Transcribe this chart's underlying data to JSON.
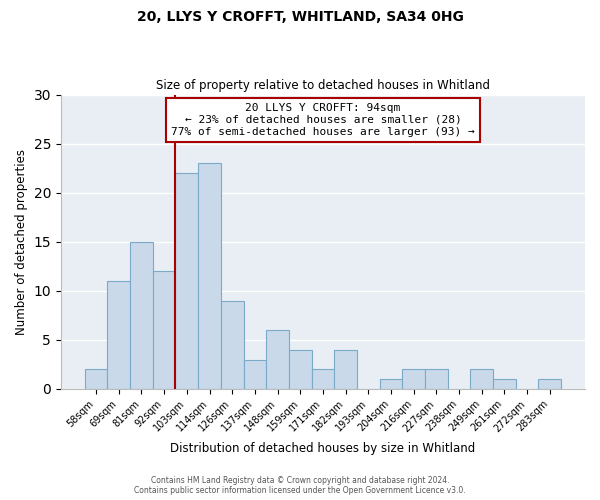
{
  "title": "20, LLYS Y CROFFT, WHITLAND, SA34 0HG",
  "subtitle": "Size of property relative to detached houses in Whitland",
  "xlabel": "Distribution of detached houses by size in Whitland",
  "ylabel": "Number of detached properties",
  "bar_labels": [
    "58sqm",
    "69sqm",
    "81sqm",
    "92sqm",
    "103sqm",
    "114sqm",
    "126sqm",
    "137sqm",
    "148sqm",
    "159sqm",
    "171sqm",
    "182sqm",
    "193sqm",
    "204sqm",
    "216sqm",
    "227sqm",
    "238sqm",
    "249sqm",
    "261sqm",
    "272sqm",
    "283sqm"
  ],
  "bar_values": [
    2,
    11,
    15,
    12,
    22,
    23,
    9,
    3,
    6,
    4,
    2,
    4,
    0,
    1,
    2,
    2,
    0,
    2,
    1,
    0,
    1
  ],
  "bar_color": "#c9d9ea",
  "bar_edge_color": "#7aaac8",
  "ylim": [
    0,
    30
  ],
  "yticks": [
    0,
    5,
    10,
    15,
    20,
    25,
    30
  ],
  "vline_x": 3.5,
  "vline_color": "#aa0000",
  "annotation_title": "20 LLYS Y CROFFT: 94sqm",
  "annotation_line1": "← 23% of detached houses are smaller (28)",
  "annotation_line2": "77% of semi-detached houses are larger (93) →",
  "annotation_box_color": "#ffffff",
  "annotation_box_edge": "#aa0000",
  "footer1": "Contains HM Land Registry data © Crown copyright and database right 2024.",
  "footer2": "Contains public sector information licensed under the Open Government Licence v3.0.",
  "background_color": "#e8eef4",
  "grid_color": "#ffffff",
  "fig_bg_color": "#ffffff"
}
